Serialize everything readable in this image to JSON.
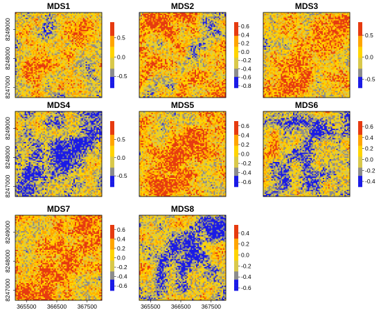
{
  "chart_data": {
    "type": "heatmap",
    "palette": [
      "#1a1ae6",
      "#8c8c8c",
      "#d9c84a",
      "#ffd400",
      "#ffa500",
      "#e63b10"
    ],
    "x_axis_ticks": [
      "365500",
      "366500",
      "367500"
    ],
    "y_axis_ticks": [
      "8247000",
      "8248000",
      "8249000"
    ],
    "panels": [
      {
        "title": "MDS1",
        "colorbar": {
          "range": [
            -0.8,
            0.9
          ],
          "ticks": [
            0.5,
            0.0,
            -0.5
          ],
          "tick_labels": [
            "0.5",
            "0.0",
            "-0.5"
          ]
        }
      },
      {
        "title": "MDS2",
        "colorbar": {
          "range": [
            -0.85,
            0.7
          ],
          "ticks": [
            0.6,
            0.4,
            0.2,
            0.0,
            -0.2,
            -0.4,
            -0.6,
            -0.8
          ],
          "tick_labels": [
            "0.6",
            "0.4",
            "0.2",
            "0.0",
            "-0.2",
            "-0.4",
            "-0.6",
            "-0.8"
          ]
        }
      },
      {
        "title": "MDS3",
        "colorbar": {
          "range": [
            -0.7,
            0.8
          ],
          "ticks": [
            0.5,
            0.0,
            -0.5
          ],
          "tick_labels": [
            "0.5",
            "0.0",
            "-0.5"
          ]
        }
      },
      {
        "title": "MDS4",
        "colorbar": {
          "range": [
            -0.8,
            1.0
          ],
          "ticks": [
            0.5,
            0.0,
            -0.5
          ],
          "tick_labels": [
            "0.5",
            "0.0",
            "-0.5"
          ]
        }
      },
      {
        "title": "MDS5",
        "colorbar": {
          "range": [
            -0.7,
            0.7
          ],
          "ticks": [
            0.6,
            0.4,
            0.2,
            0.0,
            -0.2,
            -0.4,
            -0.6
          ],
          "tick_labels": [
            "0.6",
            "0.4",
            "0.2",
            "0.0",
            "-0.2",
            "-0.4",
            "-0.6"
          ]
        }
      },
      {
        "title": "MDS6",
        "colorbar": {
          "range": [
            -0.5,
            0.7
          ],
          "ticks": [
            0.6,
            0.4,
            0.2,
            0.0,
            -0.2,
            -0.4
          ],
          "tick_labels": [
            "0.6",
            "0.4",
            "0.2",
            "0.0",
            "-0.2",
            "-0.4"
          ]
        }
      },
      {
        "title": "MDS7",
        "colorbar": {
          "range": [
            -0.7,
            0.7
          ],
          "ticks": [
            0.6,
            0.4,
            0.2,
            0.0,
            -0.2,
            -0.4,
            -0.6
          ],
          "tick_labels": [
            "0.6",
            "0.4",
            "0.2",
            "0.0",
            "-0.2",
            "-0.4",
            "-0.6"
          ]
        }
      },
      {
        "title": "MDS8",
        "colorbar": {
          "range": [
            -0.65,
            0.55
          ],
          "ticks": [
            0.4,
            0.2,
            0.0,
            -0.2,
            -0.4,
            -0.6
          ],
          "tick_labels": [
            "0.4",
            "0.2",
            "0.0",
            "-0.2",
            "-0.4",
            "-0.6"
          ]
        }
      }
    ]
  }
}
